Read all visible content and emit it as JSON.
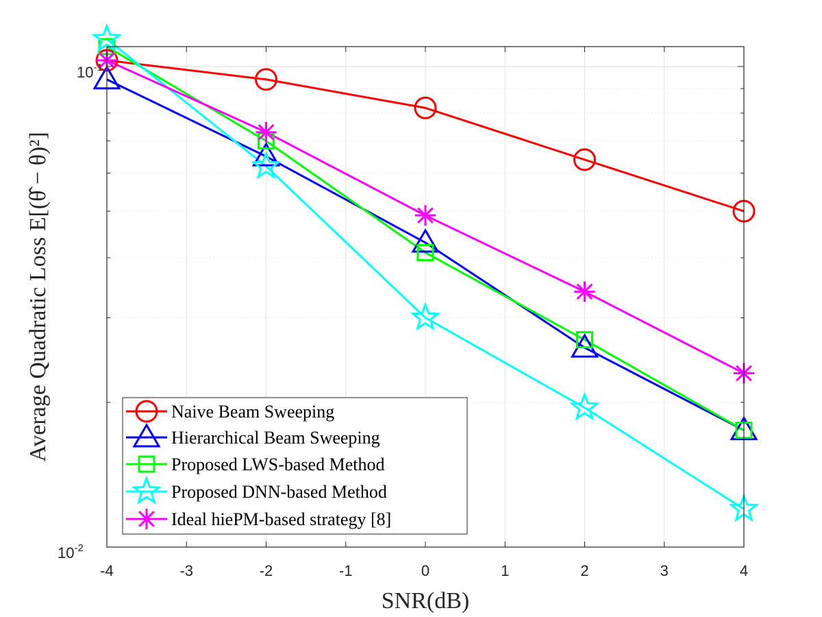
{
  "chart_data": {
    "type": "line",
    "title": "",
    "xlabel": "SNR(dB)",
    "ylabel": "Average Quadratic Loss E[(θ̂ − θ)²]",
    "xlim": [
      -4,
      4
    ],
    "ylim": [
      0.01,
      0.11
    ],
    "yscale": "log",
    "grid": true,
    "legend_position": "bottom-left",
    "x_ticks": [
      "-4",
      "-3",
      "-2",
      "-1",
      "0",
      "1",
      "2",
      "3",
      "4"
    ],
    "y_ticks": [
      {
        "base": "10",
        "exp": "-1",
        "value": 0.1
      },
      {
        "base": "10",
        "exp": "-2",
        "value": 0.01
      }
    ],
    "x": [
      -4,
      -2,
      0,
      2,
      4
    ],
    "series": [
      {
        "name": "Naive Beam Sweeping",
        "color": "#ff0000",
        "marker": "circle",
        "values": [
          0.103,
          0.094,
          0.082,
          0.064,
          0.05
        ]
      },
      {
        "name": "Hierarchical Beam Sweeping",
        "color": "#0000ff",
        "marker": "triangle",
        "values": [
          0.094,
          0.065,
          0.043,
          0.026,
          0.0175
        ]
      },
      {
        "name": "Proposed LWS-based Method",
        "color": "#00ff00",
        "marker": "square",
        "values": [
          0.11,
          0.07,
          0.041,
          0.027,
          0.0175
        ]
      },
      {
        "name": "Proposed DNN-based Method",
        "color": "#00ffff",
        "marker": "star",
        "values": [
          0.114,
          0.062,
          0.03,
          0.0195,
          0.012
        ]
      },
      {
        "name": "Ideal hiePM-based strategy [8]",
        "color": "#ff00ff",
        "marker": "asterisk",
        "values": [
          0.103,
          0.073,
          0.049,
          0.034,
          0.023
        ]
      }
    ]
  }
}
